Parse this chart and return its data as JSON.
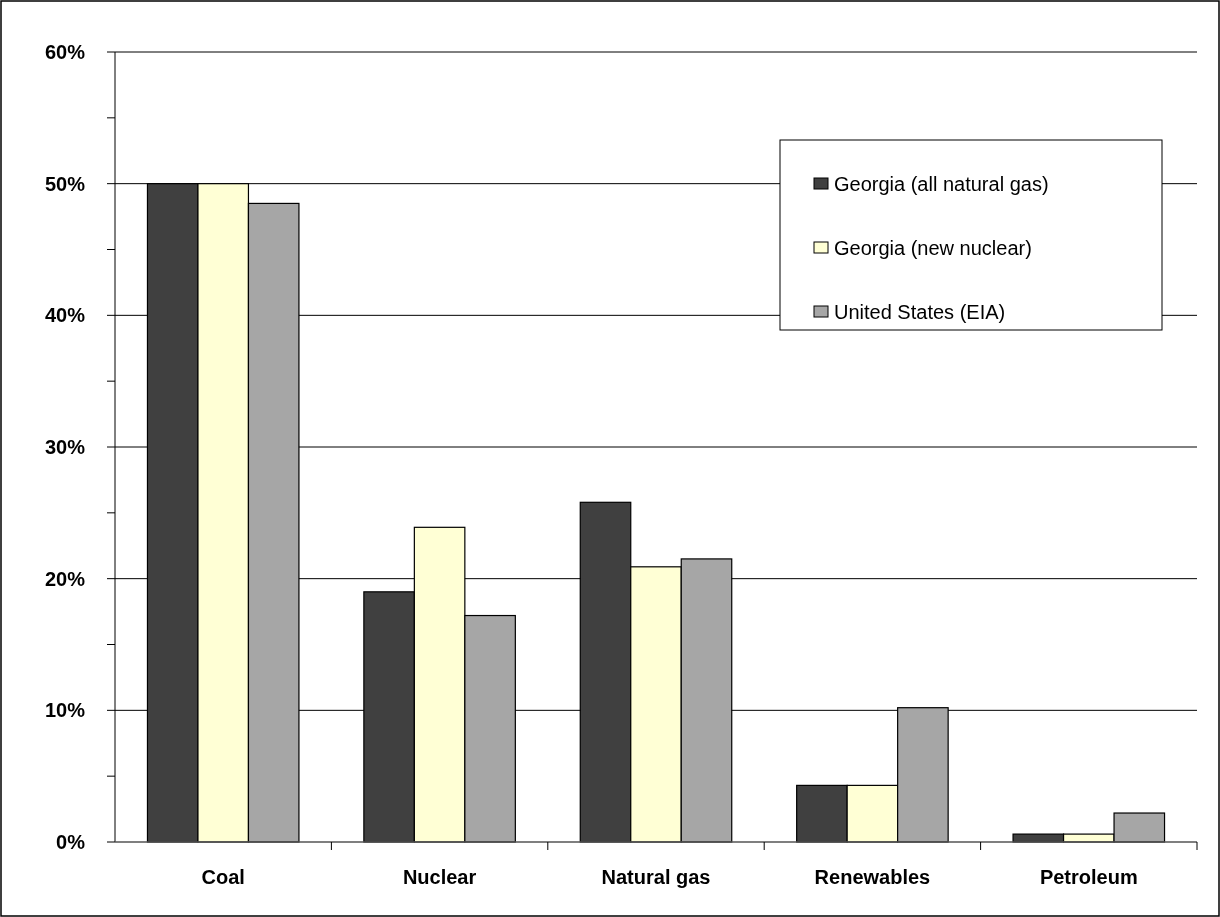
{
  "chart_data": {
    "type": "bar",
    "categories": [
      "Coal",
      "Nuclear",
      "Natural gas",
      "Renewables",
      "Petroleum"
    ],
    "series": [
      {
        "name": "Georgia (all natural gas)",
        "color": "#404040",
        "values": [
          50,
          19,
          25.8,
          4.3,
          0.6
        ]
      },
      {
        "name": "Georgia (new nuclear)",
        "color": "#ffffd5",
        "values": [
          50,
          23.9,
          20.9,
          4.3,
          0.6
        ]
      },
      {
        "name": "United States (EIA)",
        "color": "#a6a6a6",
        "values": [
          48.5,
          17.2,
          21.5,
          10.2,
          2.2
        ]
      }
    ],
    "ylim": [
      0,
      60
    ],
    "yticks": [
      {
        "value": 0,
        "label": "0%"
      },
      {
        "value": 5,
        "label": null
      },
      {
        "value": 10,
        "label": "10%"
      },
      {
        "value": 15,
        "label": null
      },
      {
        "value": 20,
        "label": "20%"
      },
      {
        "value": 25,
        "label": null
      },
      {
        "value": 30,
        "label": "30%"
      },
      {
        "value": 35,
        "label": null
      },
      {
        "value": 40,
        "label": "40%"
      },
      {
        "value": 45,
        "label": null
      },
      {
        "value": 50,
        "label": "50%"
      },
      {
        "value": 55,
        "label": null
      },
      {
        "value": 60,
        "label": "60%"
      }
    ],
    "grid": "y",
    "legend": "top right"
  }
}
